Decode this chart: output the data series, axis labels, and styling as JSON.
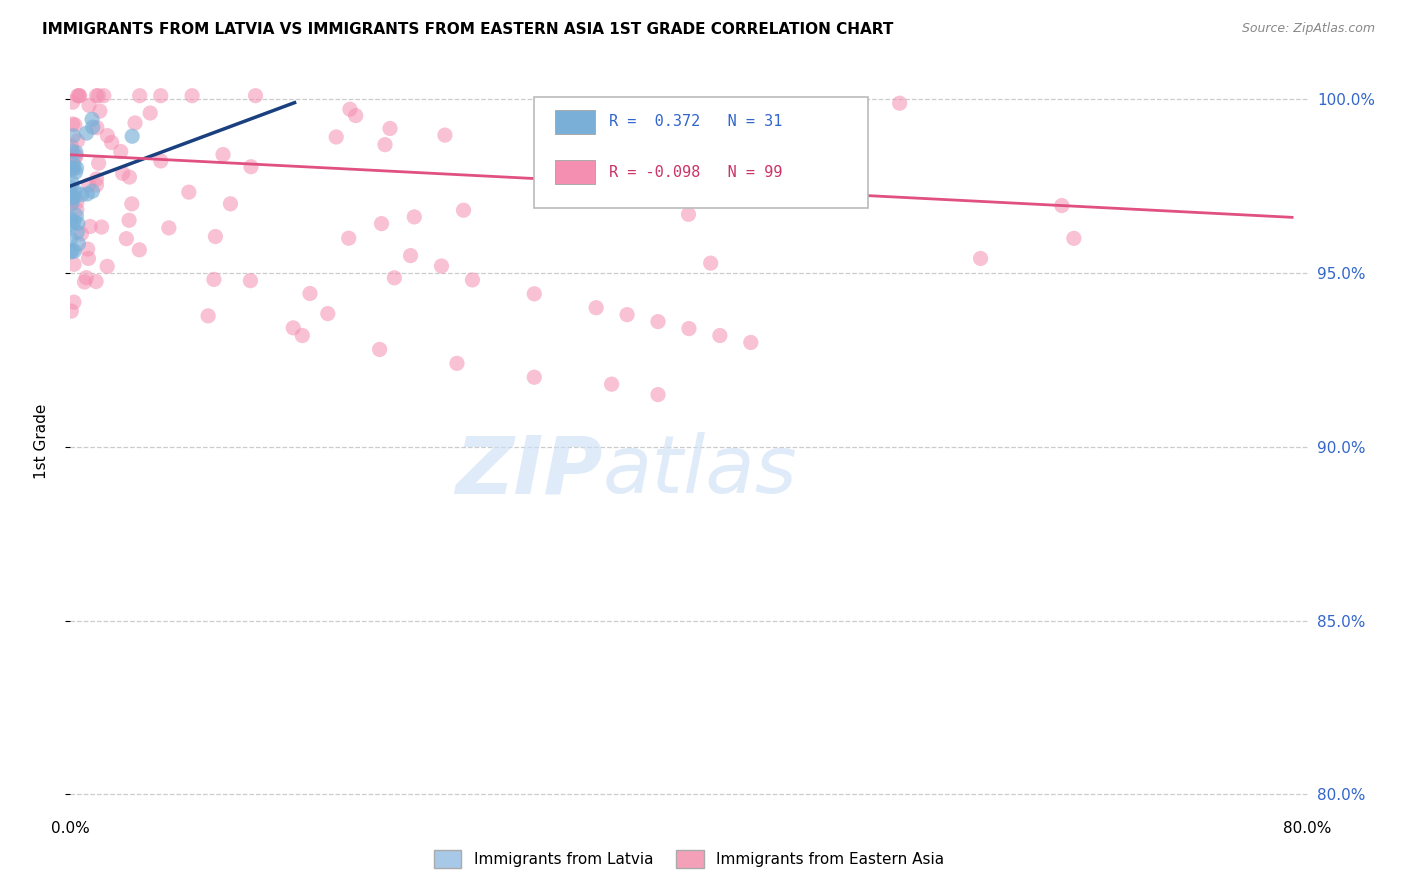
{
  "title": "IMMIGRANTS FROM LATVIA VS IMMIGRANTS FROM EASTERN ASIA 1ST GRADE CORRELATION CHART",
  "source": "Source: ZipAtlas.com",
  "ylabel": "1st Grade",
  "legend_entries": [
    {
      "label": "Immigrants from Latvia",
      "color": "#a8c8e8"
    },
    {
      "label": "Immigrants from Eastern Asia",
      "color": "#f4a0b8"
    }
  ],
  "legend_r_values": [
    {
      "r": "0.372",
      "n": "31",
      "color": "#3366cc"
    },
    {
      "r": "-0.098",
      "n": "99",
      "color": "#cc3366"
    }
  ],
  "blue_color": "#7ab0d8",
  "pink_color": "#f48fb1",
  "blue_line_color": "#1a4080",
  "pink_line_color": "#e05080",
  "right_axis_color": "#3366cc",
  "grid_color": "#cccccc",
  "background_color": "#ffffff",
  "xlim": [
    0.0,
    0.8
  ],
  "ylim": [
    0.795,
    1.008
  ],
  "yticks": [
    0.8,
    0.85,
    0.9,
    0.95,
    1.0
  ],
  "ytick_labels": [
    "80.0%",
    "85.0%",
    "90.0%",
    "95.0%",
    "100.0%"
  ]
}
